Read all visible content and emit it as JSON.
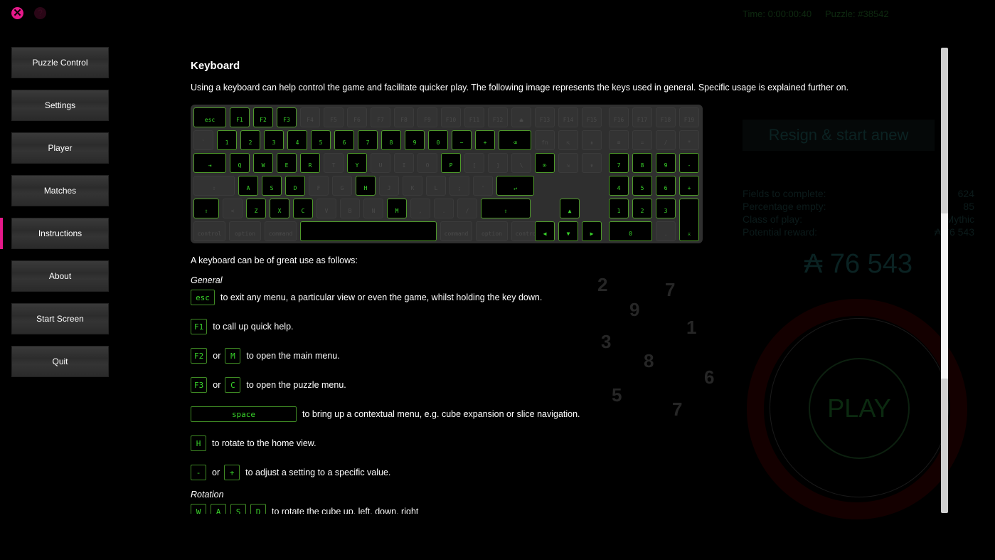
{
  "window": {
    "close_icon": "close-icon",
    "help_icon": "help-icon"
  },
  "hud": {
    "time": "Time: 0:00:00:40",
    "puzzle": "Puzzle: #38542"
  },
  "sidebar": {
    "active": "Instructions",
    "accent": "#e6198a",
    "items": [
      {
        "label": "Puzzle Control"
      },
      {
        "label": "Settings"
      },
      {
        "label": "Player"
      },
      {
        "label": "Matches"
      },
      {
        "label": "Instructions"
      },
      {
        "label": "About"
      },
      {
        "label": "Start Screen"
      },
      {
        "label": "Quit"
      }
    ]
  },
  "game_panel": {
    "resign_label": "Resign & start anew",
    "stats": [
      {
        "label": "Fields to complete:",
        "value": "624"
      },
      {
        "label": "Percentage empty:",
        "value": "85"
      },
      {
        "label": "Class of play:",
        "value": "Mythic"
      },
      {
        "label": "Potential reward:",
        "value": "₳ 76 543"
      }
    ],
    "reward": "₳ 76 543",
    "play_label": "PLAY"
  },
  "content": {
    "title": "Keyboard",
    "intro": "Using a keyboard can help control the game and facilitate quicker play. The following image represents the keys used in general. Specific usage is explained further on.",
    "usage_intro": "A keyboard can be of great use as follows:",
    "general_heading": "General",
    "general": [
      {
        "keys": [
          "esc"
        ],
        "text": "to exit any menu, a particular view or even the game, whilst holding the key down."
      },
      {
        "keys": [
          "F1"
        ],
        "text": "to call up quick help."
      },
      {
        "keys": [
          "F2",
          "M"
        ],
        "or": "or",
        "text": "to open the main menu."
      },
      {
        "keys": [
          "F3",
          "C"
        ],
        "or": "or",
        "text": "to open the puzzle menu."
      },
      {
        "keys": [
          "space"
        ],
        "text": "to bring up a contextual menu, e.g. cube expansion or slice navigation."
      },
      {
        "keys": [
          "H"
        ],
        "text": "to rotate to the home view."
      },
      {
        "keys": [
          "-",
          "+"
        ],
        "or": "or",
        "text": "to adjust a setting to a specific value."
      }
    ],
    "rotation_heading": "Rotation",
    "rotation": [
      {
        "keys": [
          "W",
          "A",
          "S",
          "D"
        ],
        "text": "to rotate the cube up, left, down, right"
      }
    ]
  },
  "keyboard": {
    "accent": "#39d42a",
    "rows": [
      [
        [
          "esc",
          1
        ],
        [
          "F1",
          1
        ],
        [
          "F2",
          1
        ],
        [
          "F3",
          1
        ],
        [
          "F4",
          0
        ],
        [
          "F5",
          0
        ],
        [
          "F6",
          0
        ],
        [
          "F7",
          0
        ],
        [
          "F8",
          0
        ],
        [
          "F9",
          0
        ],
        [
          "F10",
          0
        ],
        [
          "F11",
          0
        ],
        [
          "F12",
          0
        ],
        [
          "⏏",
          0
        ],
        [
          "F13",
          0
        ],
        [
          "F14",
          0
        ],
        [
          "F15",
          0
        ],
        [
          "F16",
          0
        ],
        [
          "F17",
          0
        ],
        [
          "F18",
          0
        ],
        [
          "F19",
          0
        ]
      ],
      [
        [
          "`",
          0
        ],
        [
          "1",
          1
        ],
        [
          "2",
          1
        ],
        [
          "3",
          1
        ],
        [
          "4",
          1
        ],
        [
          "5",
          1
        ],
        [
          "6",
          1
        ],
        [
          "7",
          1
        ],
        [
          "8",
          1
        ],
        [
          "9",
          1
        ],
        [
          "0",
          1
        ],
        [
          "−",
          1
        ],
        [
          "+",
          1
        ],
        [
          "⌫",
          1
        ],
        [
          "fn",
          0
        ],
        [
          "⇱",
          0
        ],
        [
          "⇞",
          0
        ],
        [
          "⌧",
          0
        ],
        [
          "=",
          0
        ],
        [
          "/",
          0
        ],
        [
          "*",
          0
        ]
      ],
      [
        [
          "⇥",
          1
        ],
        [
          "Q",
          1
        ],
        [
          "W",
          1
        ],
        [
          "E",
          1
        ],
        [
          "R",
          1
        ],
        [
          "T",
          0
        ],
        [
          "Y",
          1
        ],
        [
          "U",
          0
        ],
        [
          "I",
          0
        ],
        [
          "O",
          0
        ],
        [
          "P",
          1
        ],
        [
          "[",
          0
        ],
        [
          "]",
          0
        ],
        [
          "\\",
          0
        ],
        [
          "⌦",
          1
        ],
        [
          "⇲",
          0
        ],
        [
          "⇟",
          0
        ],
        [
          "7",
          1
        ],
        [
          "8",
          1
        ],
        [
          "9",
          1
        ],
        [
          "-",
          1
        ]
      ],
      [
        [
          "⇪",
          0
        ],
        [
          "A",
          1
        ],
        [
          "S",
          1
        ],
        [
          "D",
          1
        ],
        [
          "F",
          0
        ],
        [
          "G",
          0
        ],
        [
          "H",
          1
        ],
        [
          "J",
          0
        ],
        [
          "K",
          0
        ],
        [
          "L",
          0
        ],
        [
          ";",
          0
        ],
        [
          "'",
          0
        ],
        [
          "↵",
          1
        ],
        [
          "4",
          1
        ],
        [
          "5",
          1
        ],
        [
          "6",
          1
        ],
        [
          "+",
          1
        ]
      ],
      [
        [
          "⇧",
          1
        ],
        [
          "<",
          0
        ],
        [
          "Z",
          1
        ],
        [
          "X",
          1
        ],
        [
          "C",
          1
        ],
        [
          "V",
          0
        ],
        [
          "B",
          0
        ],
        [
          "N",
          0
        ],
        [
          "M",
          1
        ],
        [
          ",",
          0
        ],
        [
          ".",
          0
        ],
        [
          "/",
          0
        ],
        [
          "⇧",
          1
        ],
        [
          "▲",
          1
        ],
        [
          "1",
          1
        ],
        [
          "2",
          1
        ],
        [
          "3",
          1
        ],
        [
          "enter",
          1
        ]
      ],
      [
        [
          "control",
          0
        ],
        [
          "option",
          0
        ],
        [
          "command",
          0
        ],
        [
          "",
          1
        ],
        [
          "command",
          0
        ],
        [
          "option",
          0
        ],
        [
          "control",
          0
        ],
        [
          "◀",
          1
        ],
        [
          "▼",
          1
        ],
        [
          "▶",
          1
        ],
        [
          "0",
          1
        ],
        [
          ".",
          0
        ]
      ]
    ]
  }
}
